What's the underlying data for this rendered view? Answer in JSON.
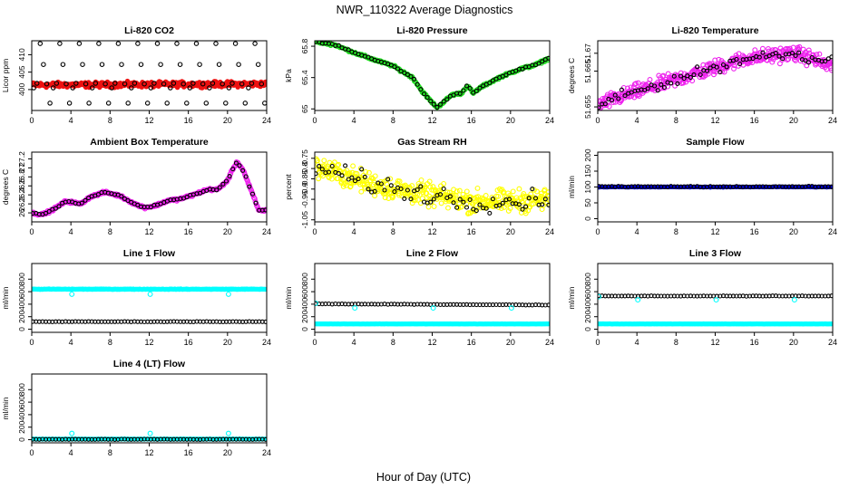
{
  "title": "NWR_110322  Average Diagnostics",
  "xlabel": "Hour of Day (UTC)",
  "x_ticks": [
    0,
    4,
    8,
    12,
    16,
    20,
    24
  ],
  "colors": {
    "red": "#ee1111",
    "green": "#22dd22",
    "magenta": "#ee22ee",
    "yellow": "#ffff00",
    "blue": "#0000cc",
    "cyan": "#00ffff",
    "black": "#000000"
  },
  "chart_data": [
    {
      "id": "co2",
      "type": "scatter",
      "title": "Li-820 CO2",
      "ylabel": "Licor ppm",
      "xlim": [
        0,
        24
      ],
      "ylim": [
        394,
        414
      ],
      "yticks": [
        400,
        405,
        410
      ],
      "series": [
        {
          "name": "samples",
          "color": "red",
          "pattern": "noise",
          "base": 401.3,
          "slope": 0.012,
          "noise": 0.6,
          "n": 360,
          "size": 2.8,
          "filled": true
        },
        {
          "name": "averages",
          "color": "black",
          "pattern": "cycle",
          "levels": [
            400.5,
            401.8,
            413.2,
            407.2,
            401.6,
            396.1
          ],
          "n": 72,
          "size": 2.2,
          "filled": false
        }
      ]
    },
    {
      "id": "pressure",
      "type": "scatter",
      "title": "Li-820 Pressure",
      "ylabel": "kPa",
      "xlim": [
        0,
        24
      ],
      "ylim": [
        64.98,
        65.87
      ],
      "yticks": [
        65.0,
        65.4,
        65.8
      ],
      "series": [
        {
          "name": "samples",
          "color": "green",
          "pattern": "curve",
          "points": [
            [
              0,
              65.86
            ],
            [
              2,
              65.82
            ],
            [
              4,
              65.72
            ],
            [
              6,
              65.63
            ],
            [
              8,
              65.55
            ],
            [
              10,
              65.4
            ],
            [
              11,
              65.22
            ],
            [
              12,
              65.08
            ],
            [
              12.5,
              65.02
            ],
            [
              13,
              65.07
            ],
            [
              14,
              65.18
            ],
            [
              15,
              65.2
            ],
            [
              15.6,
              65.3
            ],
            [
              16.2,
              65.2
            ],
            [
              17,
              65.28
            ],
            [
              19,
              65.41
            ],
            [
              21,
              65.51
            ],
            [
              22.5,
              65.56
            ],
            [
              24,
              65.65
            ]
          ],
          "noise": 0.012,
          "n": 360,
          "size": 2.2,
          "filled": false
        },
        {
          "name": "averages",
          "color": "black",
          "pattern": "curve",
          "points": [
            [
              0,
              65.86
            ],
            [
              2,
              65.82
            ],
            [
              4,
              65.72
            ],
            [
              6,
              65.63
            ],
            [
              8,
              65.55
            ],
            [
              10,
              65.4
            ],
            [
              11,
              65.22
            ],
            [
              12,
              65.08
            ],
            [
              12.5,
              65.02
            ],
            [
              13,
              65.07
            ],
            [
              14,
              65.18
            ],
            [
              15,
              65.2
            ],
            [
              15.6,
              65.3
            ],
            [
              16.2,
              65.2
            ],
            [
              17,
              65.28
            ],
            [
              19,
              65.41
            ],
            [
              21,
              65.51
            ],
            [
              22.5,
              65.56
            ],
            [
              24,
              65.65
            ]
          ],
          "noise": 0.008,
          "n": 72,
          "size": 2.0,
          "filled": false
        }
      ]
    },
    {
      "id": "temperature",
      "type": "scatter",
      "title": "Li-820 Temperature",
      "ylabel": "degrees C",
      "xlim": [
        0,
        24
      ],
      "ylim": [
        51.654,
        51.6735
      ],
      "yticks": [
        51.655,
        51.665,
        51.67
      ],
      "series": [
        {
          "name": "samples",
          "color": "magenta",
          "pattern": "curve",
          "points": [
            [
              0,
              51.6555
            ],
            [
              3,
              51.6585
            ],
            [
              6,
              51.661
            ],
            [
              9,
              51.6635
            ],
            [
              12,
              51.666
            ],
            [
              15,
              51.6685
            ],
            [
              18,
              51.6695
            ],
            [
              20,
              51.67
            ],
            [
              22,
              51.6685
            ],
            [
              24,
              51.666
            ]
          ],
          "noise": 0.0017,
          "n": 420,
          "size": 2.4,
          "filled": false
        },
        {
          "name": "averages",
          "color": "black",
          "pattern": "curve",
          "points": [
            [
              0,
              51.6555
            ],
            [
              3,
              51.6585
            ],
            [
              6,
              51.661
            ],
            [
              9,
              51.6635
            ],
            [
              12,
              51.666
            ],
            [
              15,
              51.6685
            ],
            [
              18,
              51.6695
            ],
            [
              20,
              51.67
            ],
            [
              22,
              51.6685
            ],
            [
              24,
              51.668
            ]
          ],
          "noise": 0.0012,
          "n": 72,
          "size": 2.0,
          "filled": false
        }
      ]
    },
    {
      "id": "ambient",
      "type": "scatter",
      "title": "Ambient Box Temperature",
      "ylabel": "degrees C",
      "xlim": [
        0,
        24
      ],
      "ylim": [
        25.8,
        27.35
      ],
      "yticks": [
        26.0,
        26.2,
        26.4,
        26.6,
        26.8,
        27.0,
        27.2
      ],
      "series": [
        {
          "name": "samples",
          "color": "magenta",
          "pattern": "curve",
          "points": [
            [
              0,
              26.0
            ],
            [
              1,
              25.96
            ],
            [
              2,
              26.05
            ],
            [
              3.5,
              26.26
            ],
            [
              5,
              26.2
            ],
            [
              6,
              26.36
            ],
            [
              7.5,
              26.46
            ],
            [
              9,
              26.38
            ],
            [
              10.5,
              26.2
            ],
            [
              11.5,
              26.12
            ],
            [
              12.5,
              26.15
            ],
            [
              14,
              26.28
            ],
            [
              15,
              26.3
            ],
            [
              16.5,
              26.4
            ],
            [
              18,
              26.52
            ],
            [
              19,
              26.52
            ],
            [
              20,
              26.72
            ],
            [
              20.6,
              27.0
            ],
            [
              21,
              27.13
            ],
            [
              21.6,
              26.95
            ],
            [
              22.5,
              26.45
            ],
            [
              23.2,
              26.05
            ],
            [
              24,
              26.06
            ]
          ],
          "noise": 0.02,
          "n": 360,
          "size": 2.4,
          "filled": false
        },
        {
          "name": "averages",
          "color": "black",
          "pattern": "curve",
          "points": [
            [
              0,
              26.0
            ],
            [
              1,
              25.96
            ],
            [
              2,
              26.05
            ],
            [
              3.5,
              26.26
            ],
            [
              5,
              26.2
            ],
            [
              6,
              26.36
            ],
            [
              7.5,
              26.46
            ],
            [
              9,
              26.38
            ],
            [
              10.5,
              26.2
            ],
            [
              11.5,
              26.12
            ],
            [
              12.5,
              26.15
            ],
            [
              14,
              26.28
            ],
            [
              15,
              26.3
            ],
            [
              16.5,
              26.4
            ],
            [
              18,
              26.52
            ],
            [
              19,
              26.52
            ],
            [
              20,
              26.72
            ],
            [
              20.6,
              27.0
            ],
            [
              21,
              27.13
            ],
            [
              21.6,
              26.95
            ],
            [
              22.5,
              26.45
            ],
            [
              23.2,
              26.05
            ],
            [
              24,
              26.06
            ]
          ],
          "noise": 0.015,
          "n": 72,
          "size": 2.0,
          "filled": false
        }
      ]
    },
    {
      "id": "rh",
      "type": "scatter",
      "title": "Gas Stream RH",
      "ylabel": "percent",
      "xlim": [
        0,
        24
      ],
      "ylim": [
        -1.06,
        -0.72
      ],
      "yticks": [
        -1.05,
        -0.95,
        -0.9,
        -0.85,
        -0.8,
        -0.75
      ],
      "series": [
        {
          "name": "samples",
          "color": "yellow",
          "pattern": "curve",
          "points": [
            [
              0,
              -0.79
            ],
            [
              4,
              -0.85
            ],
            [
              8,
              -0.9
            ],
            [
              12,
              -0.93
            ],
            [
              16,
              -0.96
            ],
            [
              20,
              -0.96
            ],
            [
              24,
              -0.95
            ]
          ],
          "noise": 0.045,
          "n": 420,
          "size": 2.4,
          "filled": false
        },
        {
          "name": "averages",
          "color": "black",
          "pattern": "curve",
          "points": [
            [
              0,
              -0.79
            ],
            [
              4,
              -0.85
            ],
            [
              8,
              -0.9
            ],
            [
              12,
              -0.93
            ],
            [
              16,
              -0.96
            ],
            [
              20,
              -0.96
            ],
            [
              24,
              -0.95
            ]
          ],
          "noise": 0.04,
          "n": 72,
          "size": 2.0,
          "filled": false
        }
      ]
    },
    {
      "id": "sample_flow",
      "type": "scatter",
      "title": "Sample Flow",
      "ylabel": "ml/min",
      "xlim": [
        0,
        24
      ],
      "ylim": [
        -10,
        210
      ],
      "yticks": [
        0,
        50,
        100,
        150,
        200
      ],
      "series": [
        {
          "name": "samples",
          "color": "blue",
          "pattern": "noise",
          "base": 100,
          "slope": 0,
          "noise": 1,
          "n": 360,
          "size": 2.4,
          "filled": true
        },
        {
          "name": "averages",
          "color": "black",
          "pattern": "noise",
          "base": 101,
          "slope": 0,
          "noise": 1,
          "n": 72,
          "size": 2.0,
          "filled": false
        }
      ]
    },
    {
      "id": "line1",
      "type": "scatter",
      "title": "Line 1 Flow",
      "ylabel": "ml/min",
      "xlim": [
        0,
        24
      ],
      "ylim": [
        -50,
        1050
      ],
      "yticks": [
        0,
        200,
        400,
        600,
        800
      ],
      "series": [
        {
          "name": "sample",
          "color": "cyan",
          "pattern": "noise",
          "base": 640,
          "slope": 0,
          "noise": 4,
          "n": 360,
          "size": 2.6,
          "filled": true
        },
        {
          "name": "average",
          "color": "black",
          "pattern": "noise",
          "base": 120,
          "slope": 0,
          "noise": 2,
          "n": 72,
          "size": 2.0,
          "filled": false
        },
        {
          "name": "dips",
          "color": "cyan",
          "pattern": "points",
          "pts": [
            [
              4.1,
              560
            ],
            [
              12.1,
              560
            ],
            [
              20.1,
              560
            ]
          ],
          "size": 2.4,
          "filled": false
        }
      ]
    },
    {
      "id": "line2",
      "type": "scatter",
      "title": "Line 2 Flow",
      "ylabel": "ml/min",
      "xlim": [
        0,
        24
      ],
      "ylim": [
        -50,
        1050
      ],
      "yticks": [
        0,
        200,
        400,
        600,
        800
      ],
      "series": [
        {
          "name": "sample",
          "color": "cyan",
          "pattern": "noise",
          "base": 85,
          "slope": 0,
          "noise": 2,
          "n": 360,
          "size": 2.6,
          "filled": true
        },
        {
          "name": "average",
          "color": "black",
          "pattern": "noise",
          "base": 405,
          "slope": -0.8,
          "noise": 3,
          "n": 72,
          "size": 2.0,
          "filled": false
        },
        {
          "name": "dips",
          "color": "cyan",
          "pattern": "points",
          "pts": [
            [
              0.1,
              415
            ],
            [
              4.1,
              340
            ],
            [
              12.1,
              340
            ],
            [
              20.1,
              340
            ]
          ],
          "size": 2.4,
          "filled": false
        }
      ]
    },
    {
      "id": "line3",
      "type": "scatter",
      "title": "Line 3 Flow",
      "ylabel": "ml/min",
      "xlim": [
        0,
        24
      ],
      "ylim": [
        -50,
        1050
      ],
      "yticks": [
        0,
        200,
        400,
        600,
        800
      ],
      "series": [
        {
          "name": "sample",
          "color": "cyan",
          "pattern": "noise",
          "base": 85,
          "slope": 0,
          "noise": 2,
          "n": 360,
          "size": 2.6,
          "filled": true
        },
        {
          "name": "average",
          "color": "black",
          "pattern": "noise",
          "base": 530,
          "slope": 0,
          "noise": 3,
          "n": 72,
          "size": 2.0,
          "filled": false
        },
        {
          "name": "dips",
          "color": "cyan",
          "pattern": "points",
          "pts": [
            [
              0.1,
              520
            ],
            [
              4.1,
              470
            ],
            [
              12.1,
              470
            ],
            [
              20.1,
              470
            ]
          ],
          "size": 2.4,
          "filled": false
        }
      ]
    },
    {
      "id": "line4",
      "type": "scatter",
      "title": "Line 4 (LT) Flow",
      "ylabel": "ml/min",
      "xlim": [
        0,
        24
      ],
      "ylim": [
        -50,
        1050
      ],
      "yticks": [
        0,
        200,
        400,
        600,
        800
      ],
      "series": [
        {
          "name": "sample",
          "color": "cyan",
          "pattern": "noise",
          "base": 10,
          "slope": 0,
          "noise": 2,
          "n": 360,
          "size": 2.6,
          "filled": true
        },
        {
          "name": "average",
          "color": "black",
          "pattern": "noise",
          "base": 5,
          "slope": 0,
          "noise": 2,
          "n": 72,
          "size": 2.0,
          "filled": false
        },
        {
          "name": "spikes",
          "color": "cyan",
          "pattern": "points",
          "pts": [
            [
              4.1,
              100
            ],
            [
              12.1,
              100
            ],
            [
              20.1,
              100
            ]
          ],
          "size": 2.4,
          "filled": false
        }
      ]
    }
  ]
}
